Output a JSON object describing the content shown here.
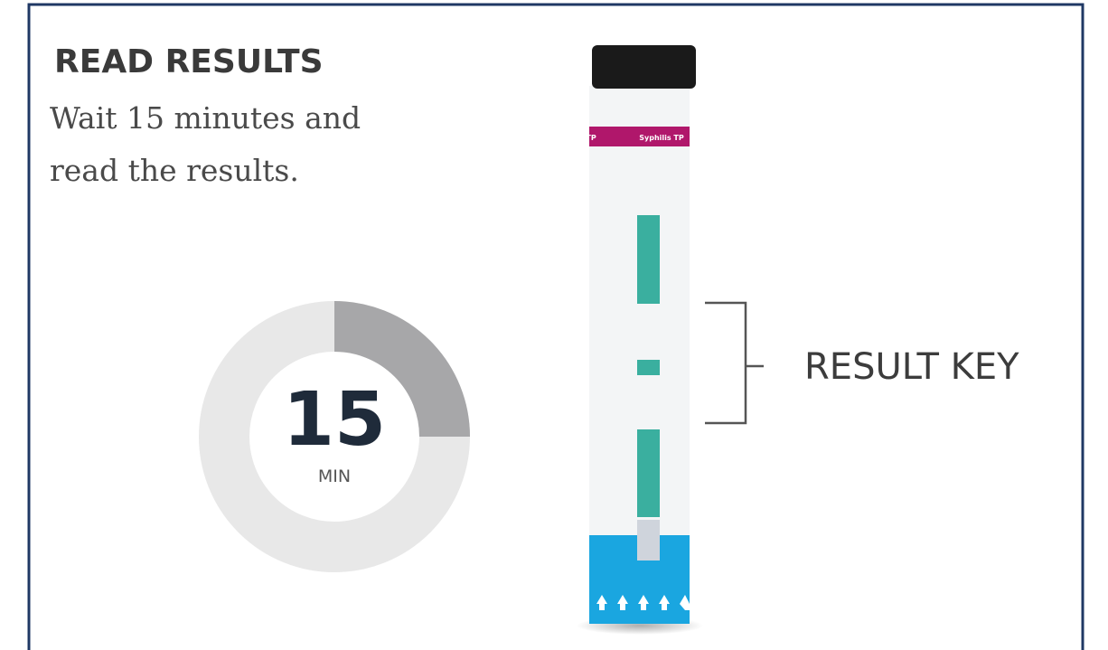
{
  "heading": "READ RESULTS",
  "instruction": [
    "Wait 15 minutes and",
    "read the results."
  ],
  "timer": {
    "number": "15",
    "unit": "MIN"
  },
  "strip_label": "Syphilis TP",
  "callout": "RESULT KEY"
}
